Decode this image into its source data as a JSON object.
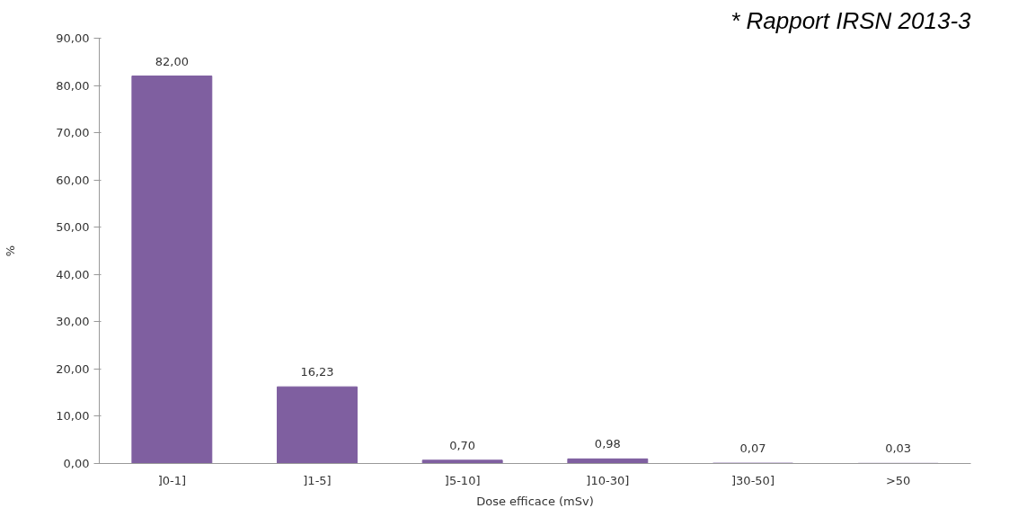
{
  "chart_data": {
    "type": "bar",
    "xlabel": "Dose efficace (mSv)",
    "ylabel": "%",
    "categories": [
      "]0-1]",
      "]1-5]",
      "]5-10]",
      "]10-30]",
      "]30-50]",
      ">50"
    ],
    "values": [
      82.0,
      16.23,
      0.7,
      0.98,
      0.07,
      0.03
    ],
    "value_labels": [
      "82,00",
      "16,23",
      "0,70",
      "0,98",
      "0,07",
      "0,03"
    ],
    "color": "#7f5fa0",
    "ylim": [
      0,
      90
    ],
    "yticks": [
      {
        "value": 0,
        "label": "0,00"
      },
      {
        "value": 10,
        "label": "10,00"
      },
      {
        "value": 20,
        "label": "20,00"
      },
      {
        "value": 30,
        "label": "30,00"
      },
      {
        "value": 40,
        "label": "40,00"
      },
      {
        "value": 50,
        "label": "50,00"
      },
      {
        "value": 60,
        "label": "60,00"
      },
      {
        "value": 70,
        "label": "70,00"
      },
      {
        "value": 80,
        "label": "80,00"
      },
      {
        "value": 90,
        "label": "90,00"
      }
    ],
    "annotations": [
      "* Rapport IRSN 2013-3"
    ],
    "grid": false
  }
}
